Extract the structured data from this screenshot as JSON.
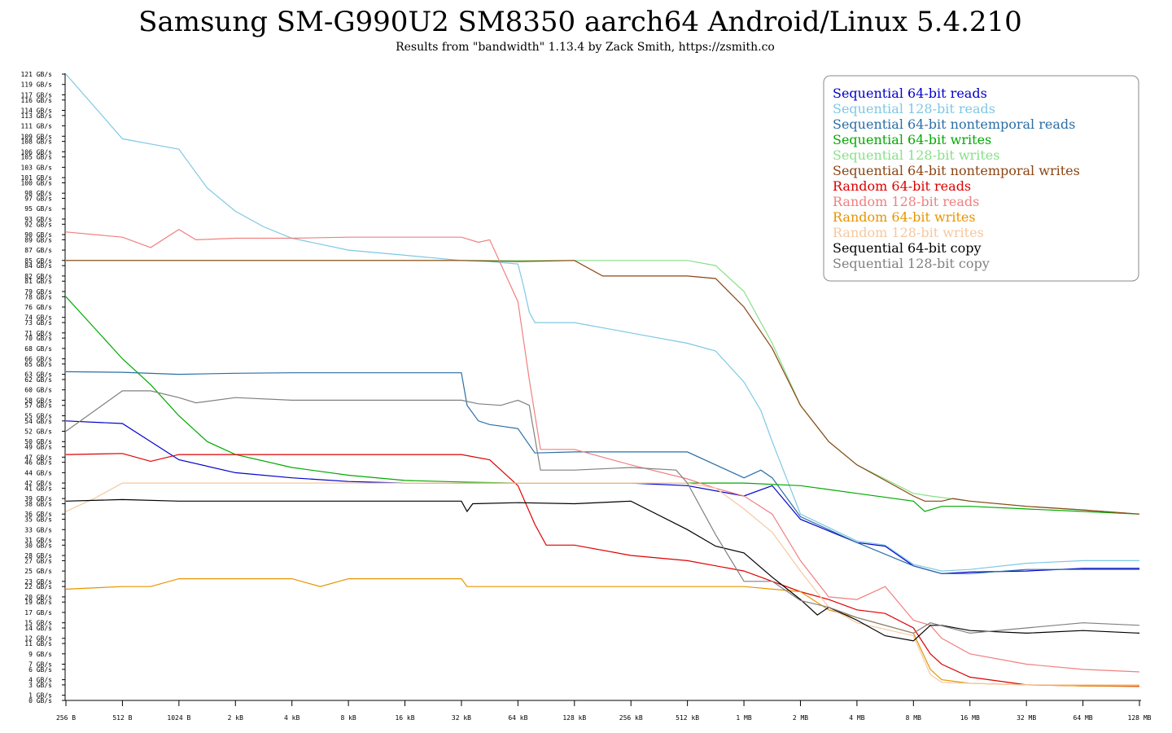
{
  "chart_data": {
    "type": "line",
    "title": "Samsung SM-G990U2 SM8350 aarch64 Android/Linux 5.4.210",
    "subtitle": "Results from \"bandwidth\" 1.13.4 by Zack Smith, https://zsmith.co",
    "x_ticks": [
      "256 B",
      "512 B",
      "1024 B",
      "2 kB",
      "4 kB",
      "8 kB",
      "16 kB",
      "32 kB",
      "64 kB",
      "128 kB",
      "256 kB",
      "512 kB",
      "1 MB",
      "2 MB",
      "4 MB",
      "8 MB",
      "16 MB",
      "32 MB",
      "64 MB",
      "128 MB"
    ],
    "y_ticks": [
      "0 GB/s",
      "1 GB/s",
      "3 GB/s",
      "4 GB/s",
      "6 GB/s",
      "7 GB/s",
      "9 GB/s",
      "11 GB/s",
      "12 GB/s",
      "14 GB/s",
      "15 GB/s",
      "17 GB/s",
      "19 GB/s",
      "20 GB/s",
      "22 GB/s",
      "23 GB/s",
      "25 GB/s",
      "27 GB/s",
      "28 GB/s",
      "30 GB/s",
      "31 GB/s",
      "33 GB/s",
      "35 GB/s",
      "36 GB/s",
      "38 GB/s",
      "39 GB/s",
      "41 GB/s",
      "42 GB/s",
      "44 GB/s",
      "46 GB/s",
      "47 GB/s",
      "49 GB/s",
      "50 GB/s",
      "52 GB/s",
      "54 GB/s",
      "55 GB/s",
      "57 GB/s",
      "58 GB/s",
      "60 GB/s",
      "62 GB/s",
      "63 GB/s",
      "65 GB/s",
      "66 GB/s",
      "68 GB/s",
      "70 GB/s",
      "71 GB/s",
      "73 GB/s",
      "74 GB/s",
      "76 GB/s",
      "78 GB/s",
      "79 GB/s",
      "81 GB/s",
      "82 GB/s",
      "84 GB/s",
      "85 GB/s",
      "87 GB/s",
      "89 GB/s",
      "90 GB/s",
      "92 GB/s",
      "93 GB/s",
      "95 GB/s",
      "97 GB/s",
      "98 GB/s",
      "100 GB/s",
      "101 GB/s",
      "103 GB/s",
      "105 GB/s",
      "106 GB/s",
      "108 GB/s",
      "109 GB/s",
      "111 GB/s",
      "113 GB/s",
      "114 GB/s",
      "116 GB/s",
      "117 GB/s",
      "119 GB/s",
      "121 GB/s"
    ],
    "y_range": [
      0,
      121
    ],
    "x_unit": "log2 bytes (256 B to 128 MB)",
    "legend_position": "top-right",
    "series": [
      {
        "name": "Sequential 64-bit reads",
        "color": "#0000cc",
        "x": [
          0,
          1,
          2,
          3,
          4,
          5,
          6,
          7,
          8,
          9,
          10,
          11,
          12,
          12.5,
          13,
          14,
          14.5,
          15,
          15.5,
          16,
          17,
          18,
          19
        ],
        "y": [
          54,
          53.5,
          46.5,
          44,
          43,
          42.3,
          42,
          42,
          42,
          42,
          42,
          41.5,
          39.5,
          41.5,
          35,
          30.5,
          29.8,
          26,
          24.5,
          24.8,
          25,
          25.5,
          25.5
        ]
      },
      {
        "name": "Sequential 128-bit reads",
        "color": "#7ec8e3",
        "x": [
          0,
          1,
          1.5,
          2,
          2.3,
          2.5,
          3,
          3.5,
          4,
          5,
          6,
          7,
          7.5,
          8,
          8.1,
          8.2,
          8.3,
          9,
          10,
          11,
          11.5,
          12,
          12.3,
          12.5,
          13,
          14,
          14.5,
          15,
          15.5,
          16,
          17,
          18,
          19
        ],
        "y": [
          121,
          108.5,
          107.5,
          106.5,
          102,
          99,
          94.5,
          91.5,
          89.3,
          87,
          86,
          85,
          84.8,
          84.3,
          80,
          75,
          73,
          73,
          71,
          69,
          67.5,
          61.5,
          56,
          50,
          36,
          30.8,
          30,
          26.3,
          25,
          25.3,
          26.5,
          27,
          27
        ]
      },
      {
        "name": "Sequential 64-bit nontemporal reads",
        "color": "#2a6ea6",
        "x": [
          0,
          1,
          2,
          3,
          4,
          5,
          6,
          7,
          7.1,
          7.3,
          7.5,
          7.7,
          8,
          8.3,
          9,
          10,
          11,
          12,
          12.3,
          12.5,
          13,
          14,
          15,
          15.5,
          16,
          17,
          18,
          19
        ],
        "y": [
          63.5,
          63.4,
          63,
          63.2,
          63.3,
          63.3,
          63.3,
          63.3,
          57,
          54,
          53.3,
          53,
          52.5,
          47.8,
          48,
          48,
          48,
          43,
          44.5,
          43,
          35.5,
          30.5,
          26,
          24.5,
          24.5,
          25.3,
          25.3,
          25.3
        ]
      },
      {
        "name": "Sequential 64-bit writes",
        "color": "#00aa00",
        "x": [
          0,
          0.5,
          1,
          1.5,
          2,
          2.5,
          3,
          4,
          5,
          6,
          7,
          8,
          9,
          10,
          11,
          12,
          13,
          14,
          15,
          15.2,
          15.5,
          16,
          17,
          18,
          19
        ],
        "y": [
          78,
          72,
          66,
          61,
          55,
          50,
          47.5,
          45,
          43.5,
          42.5,
          42.2,
          42,
          42,
          42,
          42,
          42,
          41.5,
          40,
          38.5,
          36.5,
          37.5,
          37.5,
          37,
          36.5,
          36
        ]
      },
      {
        "name": "Sequential 128-bit writes",
        "color": "#88e088",
        "x": [
          0,
          1,
          2,
          3,
          4,
          5,
          6,
          7,
          8,
          9,
          10,
          11,
          11.5,
          12,
          12.5,
          13,
          13.5,
          14,
          15,
          15.3,
          16,
          17,
          18,
          19
        ],
        "y": [
          85,
          85,
          85,
          85,
          85,
          85,
          85,
          85,
          85,
          85,
          85,
          85,
          84,
          79,
          69,
          57,
          50,
          45.5,
          40,
          39.5,
          38.5,
          37.5,
          36.8,
          36
        ]
      },
      {
        "name": "Sequential 64-bit nontemporal writes",
        "color": "#8b4513",
        "x": [
          0,
          1,
          2,
          3,
          4,
          5,
          6,
          7,
          8,
          9,
          9.5,
          10,
          11,
          11.5,
          12,
          12.5,
          13,
          13.5,
          14,
          14.5,
          15,
          15.2,
          15.5,
          15.7,
          16,
          17,
          18,
          19
        ],
        "y": [
          85,
          85,
          85,
          85,
          85,
          85,
          85,
          85,
          84.8,
          85,
          82,
          82,
          82,
          81.5,
          76,
          68,
          57,
          50,
          45.5,
          42.5,
          39.5,
          38.5,
          38.5,
          39,
          38.5,
          37.5,
          36.8,
          36
        ]
      },
      {
        "name": "Random 64-bit reads",
        "color": "#dd0000",
        "x": [
          0,
          1,
          1.5,
          2,
          3,
          4,
          5,
          6,
          7,
          7.5,
          8,
          8.3,
          8.5,
          9,
          10,
          11,
          12,
          12.5,
          13,
          13.5,
          14,
          14.5,
          15,
          15.3,
          15.5,
          16,
          17,
          18,
          19
        ],
        "y": [
          47.5,
          47.7,
          46.2,
          47.5,
          47.5,
          47.5,
          47.5,
          47.5,
          47.5,
          46.5,
          41.5,
          34,
          30,
          30,
          28,
          27,
          25,
          23,
          21,
          19.5,
          17.5,
          16.8,
          14,
          9,
          7,
          4.5,
          3,
          2.8,
          2.7
        ]
      },
      {
        "name": "Random 128-bit reads",
        "color": "#f08080",
        "x": [
          0,
          1,
          1.5,
          2,
          2.3,
          3,
          4,
          5,
          6,
          6.5,
          7,
          7.3,
          7.5,
          8,
          8.2,
          8.4,
          9,
          10,
          11,
          11.5,
          12,
          12.5,
          13,
          13.5,
          14,
          14.5,
          15,
          15.3,
          15.5,
          16,
          17,
          18,
          19
        ],
        "y": [
          90.5,
          89.5,
          87.5,
          91,
          89,
          89.3,
          89.3,
          89.5,
          89.5,
          89.5,
          89.5,
          88.5,
          89,
          77,
          62,
          48.5,
          48.5,
          45.5,
          42.8,
          41,
          39.5,
          36,
          27,
          20,
          19.5,
          22,
          15.5,
          14.5,
          12,
          9,
          7,
          6,
          5.5
        ]
      },
      {
        "name": "Random 64-bit writes",
        "color": "#e69500",
        "x": [
          0,
          1,
          1.5,
          2,
          3,
          4,
          4.5,
          5,
          6,
          7,
          7.1,
          8,
          9,
          10,
          11,
          12,
          13,
          13.5,
          14,
          15,
          15.3,
          15.5,
          16,
          17,
          18,
          19
        ],
        "y": [
          21.5,
          22,
          22,
          23.5,
          23.5,
          23.5,
          22,
          23.5,
          23.5,
          23.5,
          22,
          22,
          22,
          22,
          22,
          22,
          21,
          17.5,
          16,
          13,
          6,
          4,
          3.3,
          3,
          2.8,
          2.8
        ]
      },
      {
        "name": "Random 128-bit writes",
        "color": "#f5c8a0",
        "x": [
          0,
          0.5,
          1,
          2,
          3,
          4,
          5,
          6,
          7,
          8,
          9,
          10,
          11,
          11.5,
          12,
          12.5,
          13,
          13.5,
          14,
          15,
          15.3,
          15.5,
          16,
          17,
          18,
          19
        ],
        "y": [
          36.5,
          39,
          42,
          42,
          42,
          42,
          42,
          42,
          42,
          42,
          42,
          42,
          42,
          41,
          37,
          32.5,
          25,
          18,
          15,
          12.5,
          5,
          3.5,
          3.3,
          3,
          3,
          3
        ]
      },
      {
        "name": "Sequential 64-bit copy",
        "color": "#000000",
        "x": [
          0,
          1,
          2,
          3,
          4,
          5,
          6,
          7,
          7.1,
          7.2,
          8,
          9,
          10,
          11,
          11.5,
          12,
          12.5,
          13,
          13.3,
          13.5,
          14,
          14.5,
          15,
          15.3,
          15.5,
          16,
          17,
          18,
          19
        ],
        "y": [
          38.5,
          38.8,
          38.5,
          38.5,
          38.5,
          38.5,
          38.5,
          38.5,
          36.5,
          38,
          38.2,
          38,
          38.5,
          33,
          29.8,
          28.5,
          23.8,
          19.5,
          16.5,
          18,
          15.5,
          12.5,
          11.5,
          14.5,
          14.5,
          13.5,
          13,
          13.5,
          13
        ]
      },
      {
        "name": "Sequential 128-bit copy",
        "color": "#808080",
        "x": [
          0,
          1,
          1.5,
          2,
          2.3,
          3,
          4,
          5,
          6,
          7,
          7.3,
          7.7,
          8,
          8.2,
          8.4,
          9,
          10,
          10.8,
          11,
          11.5,
          12,
          12.5,
          13,
          13.5,
          14,
          14.5,
          15,
          15.3,
          16,
          17,
          18,
          19
        ],
        "y": [
          52,
          59.8,
          59.8,
          58.5,
          57.5,
          58.5,
          58,
          58,
          58,
          58,
          57.3,
          57,
          58,
          57,
          44.5,
          44.5,
          45,
          44.5,
          42,
          32,
          23,
          23,
          19.3,
          18,
          16,
          14.5,
          13,
          15,
          13,
          14,
          15,
          14.5
        ]
      }
    ]
  }
}
